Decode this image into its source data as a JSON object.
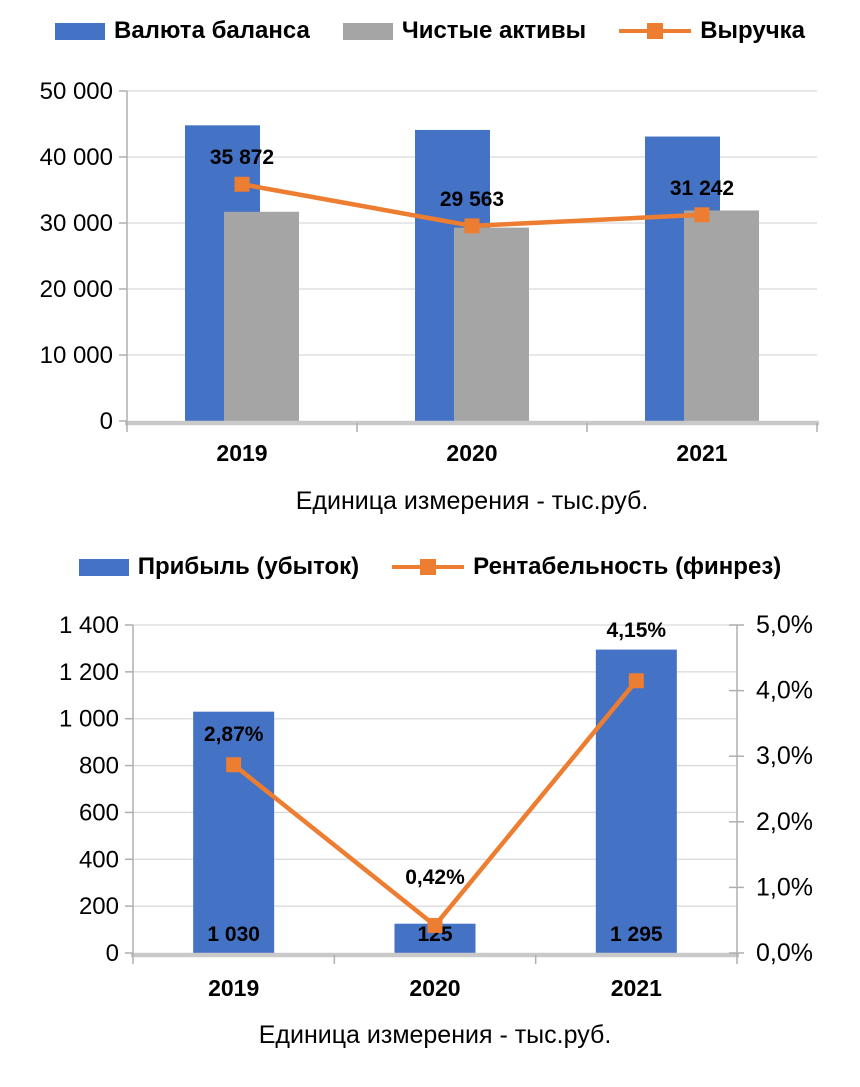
{
  "colors": {
    "bar_blue": "#4472C4",
    "bar_gray": "#A5A5A5",
    "line_orange": "#ED7D31",
    "axis_line": "#AFAFAF",
    "baseline": "#C9C9C9",
    "gridline": "#D9D9D9",
    "text": "#000000"
  },
  "chart_data": [
    {
      "type": "bar",
      "subtype": "combo bar+line",
      "categories": [
        "2019",
        "2020",
        "2021"
      ],
      "series": [
        {
          "name": "Валюта баланса",
          "type": "bar",
          "color": "#4472C4",
          "axis": "left",
          "values": [
            44800,
            44100,
            43100
          ],
          "estimated": true
        },
        {
          "name": "Чистые активы",
          "type": "bar",
          "color": "#A5A5A5",
          "axis": "left",
          "values": [
            31700,
            29300,
            31900
          ],
          "estimated": true
        },
        {
          "name": "Выручка",
          "type": "line",
          "color": "#ED7D31",
          "axis": "left",
          "values": [
            35872,
            29563,
            31242
          ],
          "data_labels": [
            "35 872",
            "29 563",
            "31 242"
          ]
        }
      ],
      "y_axis": {
        "min": 0,
        "max": 50000,
        "tick_step": 10000,
        "tick_labels": [
          "0",
          "10 000",
          "20 000",
          "30 000",
          "40 000",
          "50 000"
        ]
      },
      "grid": true,
      "legend_position": "top",
      "caption": "Единица измерения - тыс.руб."
    },
    {
      "type": "bar",
      "subtype": "combo bar+line, dual axis",
      "categories": [
        "2019",
        "2020",
        "2021"
      ],
      "series": [
        {
          "name": "Прибыль (убыток)",
          "type": "bar",
          "color": "#4472C4",
          "axis": "left",
          "values": [
            1030,
            125,
            1295
          ],
          "data_labels": [
            "1 030",
            "125",
            "1 295"
          ]
        },
        {
          "name": "Рентабельность (финрез)",
          "type": "line",
          "color": "#ED7D31",
          "axis": "right",
          "values": [
            2.87,
            0.42,
            4.15
          ],
          "data_labels": [
            "2,87%",
            "0,42%",
            "4,15%"
          ]
        }
      ],
      "y_axis": {
        "min": 0,
        "max": 1400,
        "tick_step": 200,
        "tick_labels": [
          "0",
          "200",
          "400",
          "600",
          "800",
          "1 000",
          "1 200",
          "1 400"
        ]
      },
      "y_axis_right": {
        "min": 0,
        "max": 5,
        "tick_step": 1,
        "tick_labels": [
          "0,0%",
          "1,0%",
          "2,0%",
          "3,0%",
          "4,0%",
          "5,0%"
        ]
      },
      "grid": true,
      "legend_position": "top",
      "caption": "Единица измерения - тыс.руб."
    }
  ]
}
